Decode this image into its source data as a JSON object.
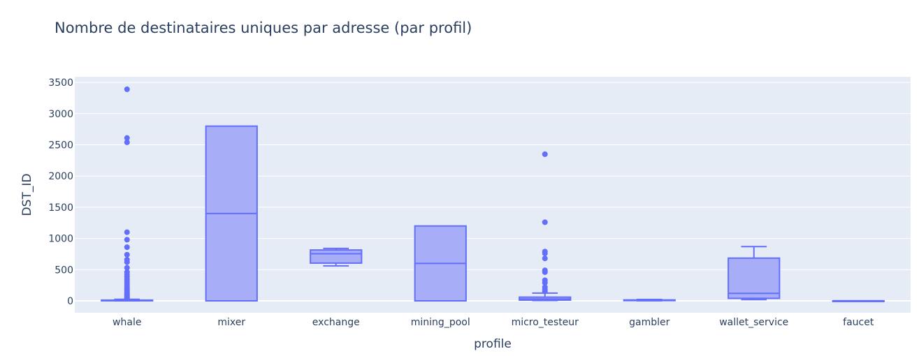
{
  "chart_data": {
    "type": "box",
    "title": "Nombre de destinataires uniques par adresse (par profil)",
    "xlabel": "profile",
    "ylabel": "DST_ID",
    "ylim": [
      -190,
      3600
    ],
    "yticks": [
      0,
      500,
      1000,
      1500,
      2000,
      2500,
      3000,
      3500
    ],
    "grid": true,
    "legend": "none",
    "colors": {
      "plot_bg": "#e5ecf6",
      "box_fill": "#a3aaf6",
      "box_line": "#636efa",
      "grid": "#ffffff",
      "text": "#2a3f5f"
    },
    "categories": [
      "whale",
      "mixer",
      "exchange",
      "mining_pool",
      "micro_testeur",
      "gambler",
      "wallet_service",
      "faucet"
    ],
    "boxes": [
      {
        "category": "whale",
        "lowerfence": 0,
        "q1": 2,
        "median": 5,
        "q3": 12,
        "upperfence": 25,
        "outliers": [
          3390,
          2610,
          2540,
          1100,
          980,
          860,
          740,
          660,
          620,
          530,
          460,
          420,
          390,
          350,
          320,
          290,
          260,
          240,
          210,
          190,
          170,
          150,
          130,
          110,
          95,
          80,
          65,
          50,
          40,
          32
        ]
      },
      {
        "category": "mixer",
        "lowerfence": 0,
        "q1": 0,
        "median": 1400,
        "q3": 2800,
        "upperfence": 2800,
        "outliers": []
      },
      {
        "category": "exchange",
        "lowerfence": 560,
        "q1": 605,
        "median": 755,
        "q3": 815,
        "upperfence": 840,
        "outliers": []
      },
      {
        "category": "mining_pool",
        "lowerfence": 0,
        "q1": 0,
        "median": 600,
        "q3": 1200,
        "upperfence": 1200,
        "outliers": []
      },
      {
        "category": "micro_testeur",
        "lowerfence": 5,
        "q1": 12,
        "median": 30,
        "q3": 60,
        "upperfence": 125,
        "outliers": [
          2350,
          1260,
          790,
          760,
          680,
          490,
          460,
          330,
          290,
          220,
          180,
          150
        ]
      },
      {
        "category": "gambler",
        "lowerfence": 2,
        "q1": 5,
        "median": 10,
        "q3": 15,
        "upperfence": 22,
        "outliers": []
      },
      {
        "category": "wallet_service",
        "lowerfence": 20,
        "q1": 40,
        "median": 120,
        "q3": 685,
        "upperfence": 870,
        "outliers": []
      },
      {
        "category": "faucet",
        "lowerfence": 1,
        "q1": 1,
        "median": 1,
        "q3": 1,
        "upperfence": 1,
        "outliers": []
      }
    ]
  }
}
